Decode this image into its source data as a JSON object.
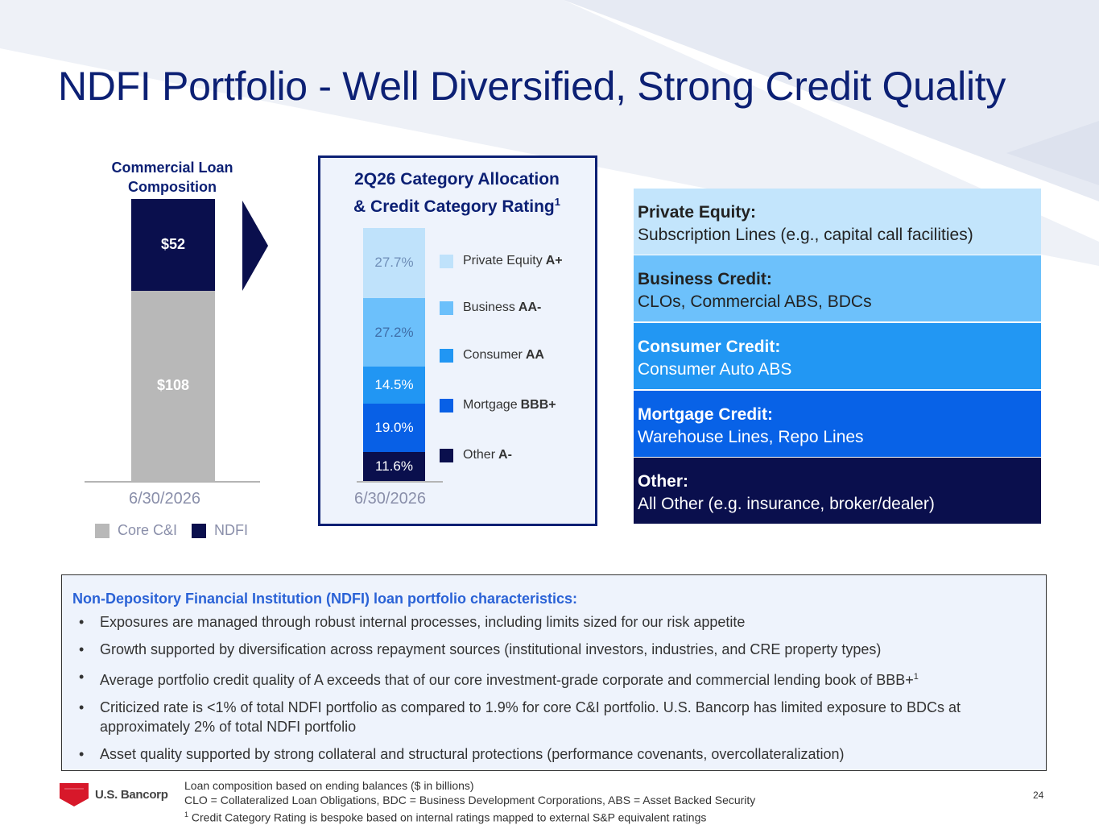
{
  "slide": {
    "title": "NDFI Portfolio - Well Diversified, Strong Credit Quality",
    "page_number": "24"
  },
  "left_chart": {
    "title_line1": "Commercial Loan",
    "title_line2": "Composition",
    "date_label": "6/30/2026",
    "legend": [
      {
        "label": "Core C&I",
        "color": "#b8b8b8"
      },
      {
        "label": "NDFI",
        "color": "#0a0f4d"
      }
    ]
  },
  "mid_chart": {
    "title_line1": "2Q26 Category Allocation",
    "title_line2": "& Credit Category Rating",
    "title_superscript": "1",
    "date_label": "6/30/2026"
  },
  "chart_data": [
    {
      "type": "bar",
      "stacked": true,
      "title": "Commercial Loan Composition",
      "categories": [
        "6/30/2026"
      ],
      "series": [
        {
          "name": "Core C&I",
          "values": [
            108
          ],
          "label": "$108",
          "color": "#b8b8b8"
        },
        {
          "name": "NDFI",
          "values": [
            52
          ],
          "label": "$52",
          "color": "#0a0f4d"
        }
      ],
      "legend_position": "bottom"
    },
    {
      "type": "bar",
      "stacked": true,
      "title": "2Q26 Category Allocation & Credit Category Rating",
      "categories": [
        "6/30/2026"
      ],
      "series": [
        {
          "name": "Private Equity",
          "rating": "A+",
          "values": [
            27.7
          ],
          "label": "27.7%",
          "color": "#bfe2fb",
          "text_color": "#6f8fb8"
        },
        {
          "name": "Business",
          "rating": "AA-",
          "values": [
            27.2
          ],
          "label": "27.2%",
          "color": "#6cc0fb",
          "text_color": "#3f6ea8"
        },
        {
          "name": "Consumer",
          "rating": "AA",
          "values": [
            14.5
          ],
          "label": "14.5%",
          "color": "#2196f3",
          "text_color": "#ffffff"
        },
        {
          "name": "Mortgage",
          "rating": "BBB+",
          "values": [
            19.0
          ],
          "label": "19.0%",
          "color": "#0860e6",
          "text_color": "#ffffff"
        },
        {
          "name": "Other",
          "rating": "A-",
          "values": [
            11.6
          ],
          "label": "11.6%",
          "color": "#0a0f4d",
          "text_color": "#ffffff"
        }
      ],
      "legend_position": "right"
    }
  ],
  "categories": [
    {
      "heading": "Private Equity:",
      "detail": "Subscription Lines (e.g., capital call facilities)",
      "bg": "#c3e5fc",
      "fg": "#222222",
      "head_fg": "#222222"
    },
    {
      "heading": "Business Credit:",
      "detail": "CLOs, Commercial ABS, BDCs",
      "bg": "#6dc1fb",
      "fg": "#222222",
      "head_fg": "#222222"
    },
    {
      "heading": "Consumer Credit:",
      "detail": "Consumer Auto ABS",
      "bg": "#2297f3",
      "fg": "#ffffff",
      "head_fg": "#ffffff"
    },
    {
      "heading": "Mortgage Credit:",
      "detail": "Warehouse Lines, Repo Lines",
      "bg": "#0862e7",
      "fg": "#ffffff",
      "head_fg": "#ffffff"
    },
    {
      "heading": "Other:",
      "detail": "All Other (e.g. insurance, broker/dealer)",
      "bg": "#0a0f4d",
      "fg": "#ffffff",
      "head_fg": "#ffffff"
    }
  ],
  "characteristics": {
    "heading": "Non-Depository Financial Institution (NDFI) loan portfolio characteristics:",
    "bullet_char": "•",
    "bullets": [
      "Exposures are managed through robust internal processes, including limits sized for our risk appetite",
      "Growth supported by diversification across repayment sources (institutional investors, industries, and CRE property types)",
      "Average portfolio credit quality of A exceeds that of our core investment-grade corporate and commercial lending book of BBB+",
      "Criticized rate is <1% of total NDFI portfolio as compared to 1.9% for core C&I portfolio. U.S. Bancorp has limited exposure to BDCs at approximately 2% of total NDFI portfolio",
      "Asset quality supported by strong collateral and structural protections (performance covenants, overcollateralization)"
    ],
    "bullet3_superscript": "1"
  },
  "footer": {
    "logo_text": "U.S. Bancorp",
    "logo_icon": "shield-icon",
    "footnote1": "Loan composition based on ending balances ($ in billions)",
    "footnote2": "CLO = Collateralized Loan Obligations, BDC = Business Development Corporations, ABS = Asset Backed Security",
    "footnote3_marker": "1",
    "footnote3": " Credit Category Rating is bespoke based on internal ratings mapped to external S&P equivalent ratings"
  },
  "colors": {
    "title": "#0c2074",
    "accent_blue": "#2a62d6"
  }
}
